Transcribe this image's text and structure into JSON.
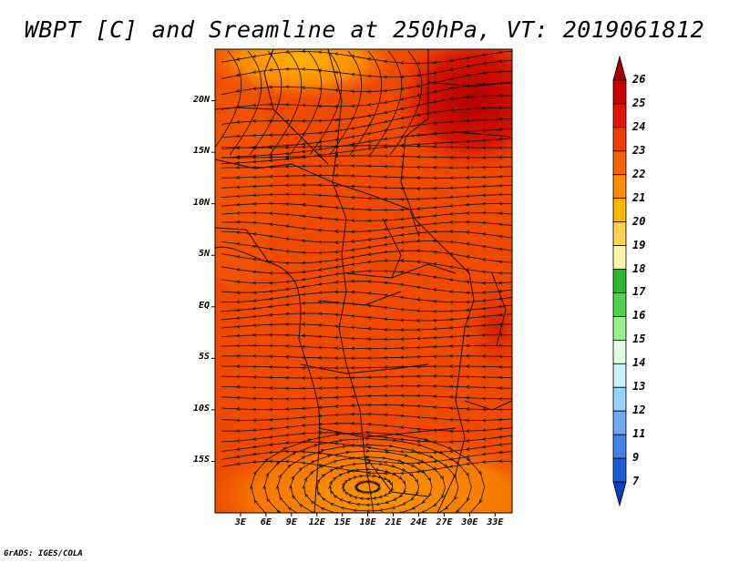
{
  "title": "WBPT [C] and Sreamline at 250hPa, VT: 2019061812",
  "footer": "GrADS: IGES/COLA",
  "map": {
    "lon_range": [
      0,
      35
    ],
    "lat_range": [
      -20,
      25
    ],
    "lat_ticks": [
      {
        "value": 20,
        "label": "20N"
      },
      {
        "value": 15,
        "label": "15N"
      },
      {
        "value": 10,
        "label": "10N"
      },
      {
        "value": 5,
        "label": "5N"
      },
      {
        "value": 0,
        "label": "EQ"
      },
      {
        "value": -5,
        "label": "5S"
      },
      {
        "value": -10,
        "label": "10S"
      },
      {
        "value": -15,
        "label": "15S"
      }
    ],
    "lon_ticks": [
      {
        "value": 3,
        "label": "3E"
      },
      {
        "value": 6,
        "label": "6E"
      },
      {
        "value": 9,
        "label": "9E"
      },
      {
        "value": 12,
        "label": "12E"
      },
      {
        "value": 15,
        "label": "15E"
      },
      {
        "value": 18,
        "label": "18E"
      },
      {
        "value": 21,
        "label": "21E"
      },
      {
        "value": 24,
        "label": "24E"
      },
      {
        "value": 27,
        "label": "27E"
      },
      {
        "value": 30,
        "label": "30E"
      },
      {
        "value": 33,
        "label": "33E"
      }
    ]
  },
  "colorbar": {
    "labels": [
      "26",
      "25",
      "24",
      "23",
      "22",
      "21",
      "20",
      "19",
      "18",
      "17",
      "16",
      "15",
      "14",
      "13",
      "12",
      "11",
      "9",
      "7"
    ],
    "colors": [
      "#a50000",
      "#c80000",
      "#e11400",
      "#f03c00",
      "#fa6400",
      "#ff8c00",
      "#ffb400",
      "#ffd250",
      "#fff5aa",
      "#2db42d",
      "#50d250",
      "#96f08c",
      "#e1ffe1",
      "#c8f0ff",
      "#96d2fa",
      "#6eaaf0",
      "#4682e6",
      "#1e5ad2",
      "#0a3cbe"
    ]
  }
}
